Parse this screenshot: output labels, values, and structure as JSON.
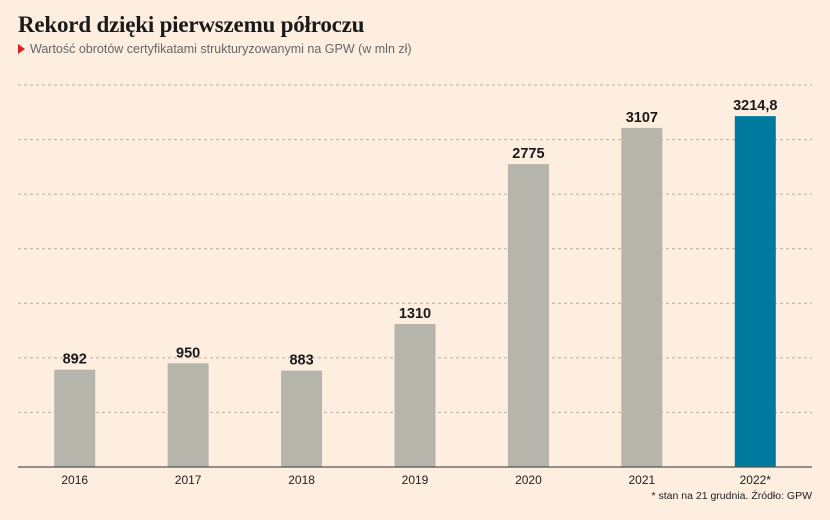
{
  "title": "Rekord dzięki pierwszemu półroczu",
  "subtitle": "Wartość obrotów certyfikatami strukturyzowanymi na GPW (w mln zł)",
  "footnote": "* stan na 21 grudnia. Źródło: GPW",
  "colors": {
    "bar": "#b5b5ab",
    "highlight": "#00799f",
    "grid": "#b9aea3",
    "axis": "#555555",
    "marker": "#e02020"
  },
  "chart_data": {
    "type": "bar",
    "categories": [
      "2016",
      "2017",
      "2018",
      "2019",
      "2020",
      "2021",
      "2022*"
    ],
    "values": [
      892,
      950,
      883,
      1310,
      2775,
      3107,
      3214.8
    ],
    "value_labels": [
      "892",
      "950",
      "883",
      "1310",
      "2775",
      "3107",
      "3214,8"
    ],
    "highlight_index": 6,
    "ylim": [
      0,
      3500
    ],
    "grid": true
  }
}
